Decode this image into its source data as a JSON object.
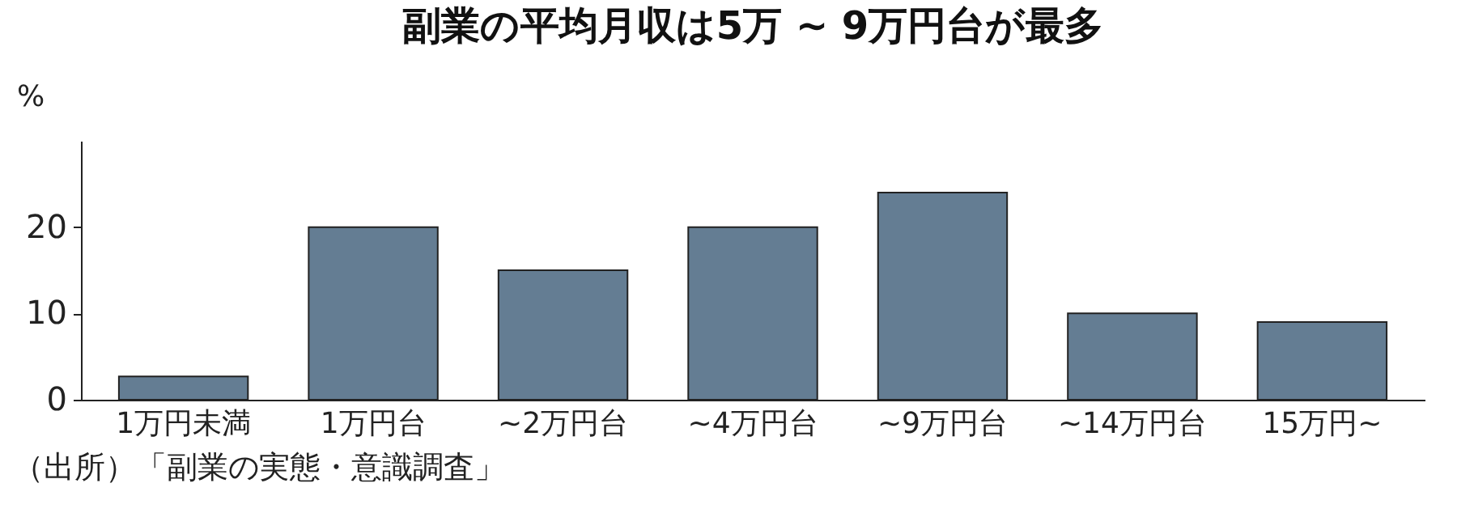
{
  "chart_data": {
    "type": "bar",
    "title": "副業の平均月収は5万 ~ 9万円台が最多",
    "ylabel": "%",
    "categories": [
      "1万円未満",
      "1万円台",
      "~2万円台",
      "~4万円台",
      "~9万円台",
      "~14万円台",
      "15万円~"
    ],
    "values": [
      2.7,
      20,
      15,
      20,
      24,
      10,
      9
    ],
    "color": "#647d93",
    "ylim": [
      0,
      30
    ],
    "yticks": [
      0,
      10,
      20
    ],
    "grid": false,
    "annotations": [
      "（出所）「副業の実態・意識調査」"
    ]
  }
}
